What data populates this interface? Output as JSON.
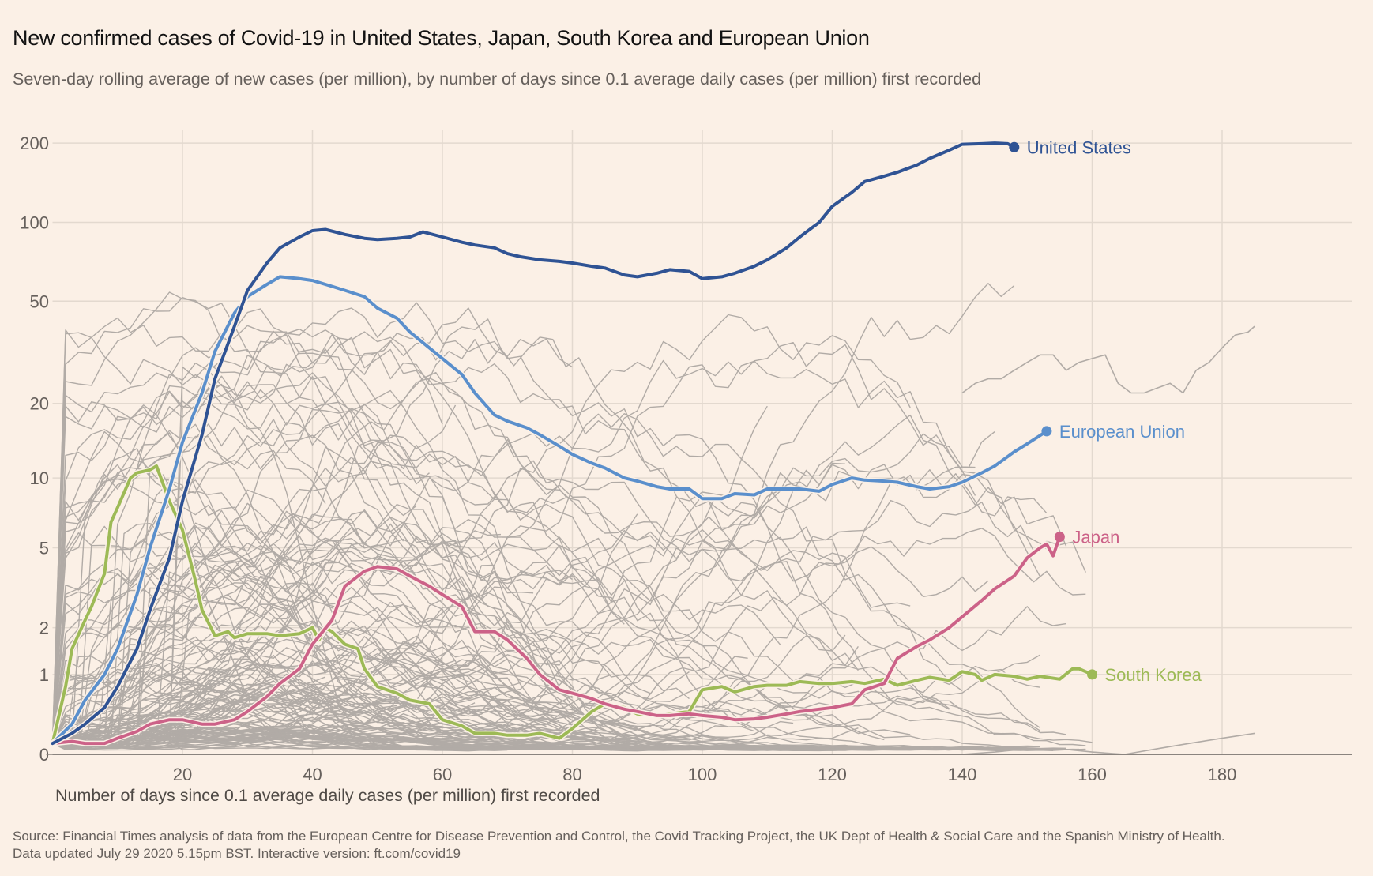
{
  "header": {
    "title": "New confirmed cases of Covid-19 in United States, Japan, South Korea and European Union",
    "subtitle": "Seven-day rolling average of new cases (per million), by number of days since 0.1 average daily cases (per million) first recorded"
  },
  "footer": {
    "source_line1": "Source: Financial Times analysis of data from the European Centre for Disease Prevention and Control, the Covid Tracking Project, the UK Dept of Health & Social Care and the Spanish Ministry of Health.",
    "source_line2": "Data updated July 29 2020 5.15pm BST. Interactive version: ft.com/covid19"
  },
  "colors": {
    "background": "#fbf0e6",
    "grid": "#e3d9cf",
    "axis": "#8a847f",
    "other_countries": "#b1aba6",
    "united_states": "#2f5394",
    "european_union": "#5a8fcc",
    "japan": "#cc6288",
    "south_korea": "#9dba56"
  },
  "chart_data": {
    "type": "line",
    "title": "New confirmed cases of Covid-19 in United States, Japan, South Korea and European Union",
    "subtitle": "Seven-day rolling average of new cases (per million), by number of days since 0.1 average daily cases (per million) first recorded",
    "xlabel": "Number of days since 0.1 average daily cases (per million) first recorded",
    "ylabel": "",
    "xlim": [
      0,
      200
    ],
    "ylim": [
      0,
      200
    ],
    "yscale": "log(value+1)",
    "x_ticks": [
      20,
      40,
      60,
      80,
      100,
      120,
      140,
      160,
      180
    ],
    "y_ticks": [
      0,
      1,
      2,
      5,
      10,
      20,
      50,
      100,
      200
    ],
    "y_tick_labels": [
      "0",
      "1",
      "2",
      "5",
      "10",
      "20",
      "50",
      "100",
      "200"
    ],
    "x_tick_labels": [
      "20",
      "40",
      "60",
      "80",
      "100",
      "120",
      "140",
      "160",
      "180"
    ],
    "grid": true,
    "legend": "direct labels at line ends",
    "series": [
      {
        "name": "United States",
        "key": "united_states",
        "x": [
          0,
          3,
          5,
          8,
          10,
          13,
          15,
          18,
          20,
          23,
          25,
          28,
          30,
          33,
          35,
          38,
          40,
          42,
          45,
          48,
          50,
          53,
          55,
          57,
          60,
          63,
          65,
          68,
          70,
          72,
          75,
          78,
          80,
          83,
          85,
          88,
          90,
          93,
          95,
          98,
          100,
          103,
          105,
          108,
          110,
          113,
          115,
          118,
          120,
          123,
          125,
          128,
          130,
          133,
          135,
          138,
          140,
          143,
          145,
          147,
          148
        ],
        "y": [
          0.1,
          0.2,
          0.3,
          0.5,
          0.8,
          1.5,
          2.5,
          4.5,
          8,
          15,
          25,
          40,
          55,
          70,
          80,
          88,
          93,
          94,
          90,
          87,
          86,
          87,
          88,
          92,
          88,
          84,
          82,
          80,
          76,
          74,
          72,
          71,
          70,
          68,
          67,
          63,
          62,
          64,
          66,
          65,
          61,
          62,
          64,
          68,
          72,
          80,
          88,
          100,
          115,
          130,
          143,
          150,
          155,
          165,
          175,
          188,
          198,
          199,
          200,
          199,
          193
        ]
      },
      {
        "name": "European Union",
        "key": "european_union",
        "x": [
          0,
          3,
          5,
          8,
          10,
          13,
          15,
          18,
          20,
          23,
          25,
          28,
          30,
          33,
          35,
          38,
          40,
          43,
          45,
          48,
          50,
          53,
          55,
          58,
          60,
          63,
          65,
          68,
          70,
          73,
          75,
          78,
          80,
          83,
          85,
          88,
          90,
          93,
          95,
          98,
          100,
          103,
          105,
          108,
          110,
          113,
          115,
          118,
          120,
          123,
          125,
          128,
          130,
          133,
          135,
          138,
          140,
          143,
          145,
          148,
          150,
          153
        ],
        "y": [
          0.1,
          0.3,
          0.6,
          1.0,
          1.5,
          3,
          5,
          9,
          14,
          22,
          32,
          45,
          52,
          58,
          62,
          61,
          60,
          57,
          55,
          52,
          47,
          43,
          38,
          33,
          30,
          26,
          22,
          18,
          17,
          16,
          15,
          13.5,
          12.5,
          11.5,
          11,
          10,
          9.7,
          9.2,
          9,
          9,
          8.2,
          8.2,
          8.6,
          8.5,
          9,
          9,
          9,
          8.8,
          9.4,
          10,
          9.8,
          9.7,
          9.6,
          9.2,
          9.0,
          9.2,
          9.6,
          10.5,
          11.2,
          12.8,
          13.8,
          15.5
        ]
      },
      {
        "name": "Japan",
        "key": "japan",
        "x": [
          0,
          3,
          5,
          8,
          10,
          13,
          15,
          18,
          20,
          23,
          25,
          28,
          30,
          33,
          35,
          38,
          40,
          43,
          45,
          48,
          50,
          53,
          55,
          58,
          60,
          63,
          65,
          68,
          70,
          73,
          75,
          78,
          80,
          83,
          85,
          88,
          90,
          93,
          95,
          98,
          100,
          103,
          105,
          108,
          110,
          113,
          115,
          118,
          120,
          123,
          125,
          128,
          130,
          133,
          135,
          138,
          140,
          143,
          145,
          148,
          150,
          152,
          153,
          154,
          155
        ],
        "y": [
          0.1,
          0.12,
          0.1,
          0.1,
          0.15,
          0.22,
          0.3,
          0.35,
          0.35,
          0.3,
          0.3,
          0.35,
          0.45,
          0.65,
          0.85,
          1.1,
          1.6,
          2.2,
          3.3,
          3.9,
          4.1,
          4.0,
          3.7,
          3.3,
          3.0,
          2.6,
          1.9,
          1.9,
          1.7,
          1.3,
          1.0,
          0.75,
          0.7,
          0.62,
          0.55,
          0.48,
          0.45,
          0.4,
          0.4,
          0.42,
          0.4,
          0.38,
          0.35,
          0.36,
          0.38,
          0.42,
          0.45,
          0.48,
          0.5,
          0.55,
          0.75,
          0.85,
          1.3,
          1.55,
          1.7,
          2.0,
          2.3,
          2.8,
          3.2,
          3.7,
          4.5,
          5.0,
          5.2,
          4.6,
          5.6
        ]
      },
      {
        "name": "South Korea",
        "key": "south_korea",
        "x": [
          0,
          2,
          3,
          5,
          6,
          8,
          9,
          10,
          12,
          13,
          15,
          16,
          18,
          20,
          22,
          23,
          25,
          27,
          28,
          30,
          33,
          35,
          38,
          40,
          41,
          42,
          43,
          45,
          47,
          48,
          50,
          53,
          55,
          58,
          60,
          63,
          65,
          68,
          70,
          73,
          75,
          78,
          80,
          83,
          85,
          88,
          90,
          93,
          95,
          98,
          100,
          103,
          105,
          108,
          110,
          113,
          115,
          118,
          120,
          123,
          125,
          128,
          130,
          133,
          135,
          138,
          140,
          142,
          143,
          145,
          148,
          150,
          152,
          155,
          157,
          158,
          160
        ],
        "y": [
          0.1,
          0.8,
          1.5,
          2.2,
          2.6,
          3.8,
          6.5,
          7.5,
          10,
          10.5,
          10.8,
          11.2,
          8,
          6,
          3.5,
          2.5,
          1.8,
          1.9,
          1.75,
          1.85,
          1.85,
          1.8,
          1.85,
          2.0,
          1.7,
          2.0,
          1.9,
          1.6,
          1.5,
          1.1,
          0.8,
          0.7,
          0.6,
          0.55,
          0.35,
          0.28,
          0.2,
          0.2,
          0.18,
          0.18,
          0.2,
          0.15,
          0.25,
          0.45,
          0.55,
          0.5,
          0.42,
          0.4,
          0.42,
          0.45,
          0.75,
          0.8,
          0.72,
          0.8,
          0.82,
          0.82,
          0.88,
          0.85,
          0.85,
          0.88,
          0.85,
          0.92,
          0.82,
          0.9,
          0.95,
          0.9,
          1.05,
          1.0,
          0.9,
          1.0,
          0.97,
          0.92,
          0.97,
          0.92,
          1.1,
          1.1,
          1.0
        ]
      }
    ],
    "end_labels": [
      {
        "series": "united_states",
        "text": "United States",
        "day": 148,
        "value": 193
      },
      {
        "series": "european_union",
        "text": "European Union",
        "day": 153,
        "value": 15.5
      },
      {
        "series": "japan",
        "text": "Japan",
        "day": 155,
        "value": 5.6
      },
      {
        "series": "south_korea",
        "text": "South Korea",
        "day": 160,
        "value": 1.0
      }
    ],
    "other_countries": {
      "description": "Unlabelled grey lines for other countries",
      "count": 150,
      "seed": 20200729,
      "highlighted_tail": {
        "x": [
          140,
          142,
          144,
          146,
          148,
          150,
          152,
          154,
          156,
          158,
          160,
          162,
          164,
          166,
          168,
          170,
          172,
          174,
          176,
          178,
          180,
          182,
          184,
          185
        ],
        "y": [
          22,
          24,
          25,
          25,
          27,
          29,
          31,
          31,
          27,
          29,
          30,
          31,
          24,
          22,
          22,
          23,
          24,
          22,
          27,
          29,
          33,
          37,
          38,
          40
        ]
      },
      "tail_2": {
        "x": [
          140,
          145,
          150,
          155,
          160,
          165,
          170,
          175,
          180,
          185
        ],
        "y": [
          0,
          0.02,
          0.05,
          0.05,
          0.02,
          0,
          0.05,
          0.1,
          0.15,
          0.2
        ]
      }
    }
  }
}
